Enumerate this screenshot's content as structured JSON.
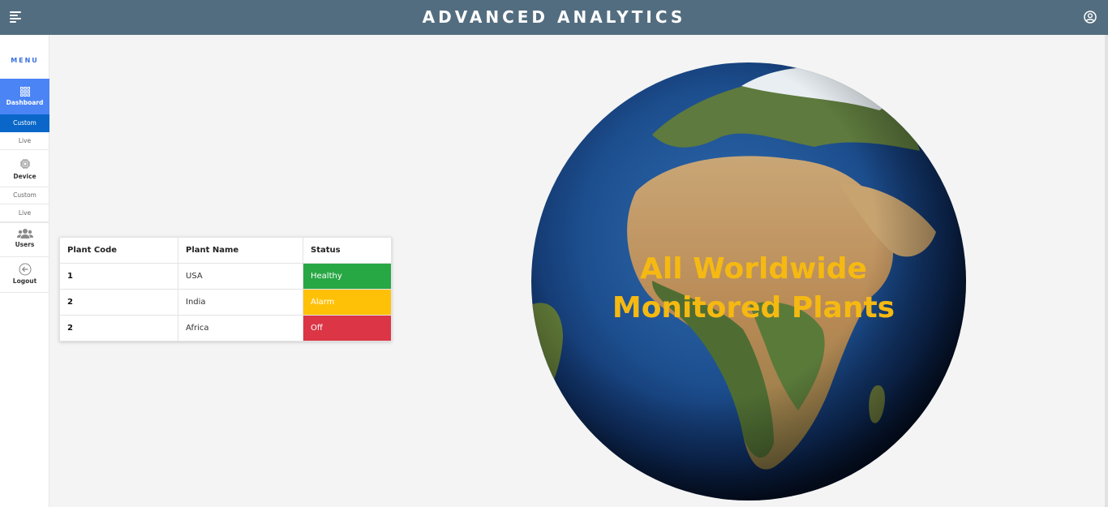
{
  "header": {
    "title": "ADVANCED ANALYTICS",
    "menu_icon": "hamburger-menu-icon",
    "user_icon": "user-circle-icon"
  },
  "sidebar": {
    "menu_label": "MENU",
    "dashboard": {
      "label": "Dashboard",
      "icon": "grid-icon",
      "sub": [
        "Custom",
        "Live"
      ]
    },
    "device": {
      "label": "Device",
      "icon": "chip-icon",
      "sub": [
        "Custom",
        "Live"
      ]
    },
    "users": {
      "label": "Users",
      "icon": "users-icon"
    },
    "logout": {
      "label": "Logout",
      "icon": "logout-arrow-icon"
    }
  },
  "table": {
    "headers": [
      "Plant Code",
      "Plant Name",
      "Status"
    ],
    "rows": [
      {
        "code": "1",
        "name": "USA",
        "status": "Healthy",
        "color": "#28a745"
      },
      {
        "code": "2",
        "name": "India",
        "status": "Alarm",
        "color": "#ffc107"
      },
      {
        "code": "2",
        "name": "Africa",
        "status": "Off",
        "color": "#dc3545"
      }
    ]
  },
  "globe": {
    "line1": "All Worldwide",
    "line2": "Monitored Plants",
    "text_color": "#f5b912"
  },
  "colors": {
    "header": "#536d80",
    "active_nav": "#4a84f5",
    "active_sub": "#0a67c9"
  }
}
